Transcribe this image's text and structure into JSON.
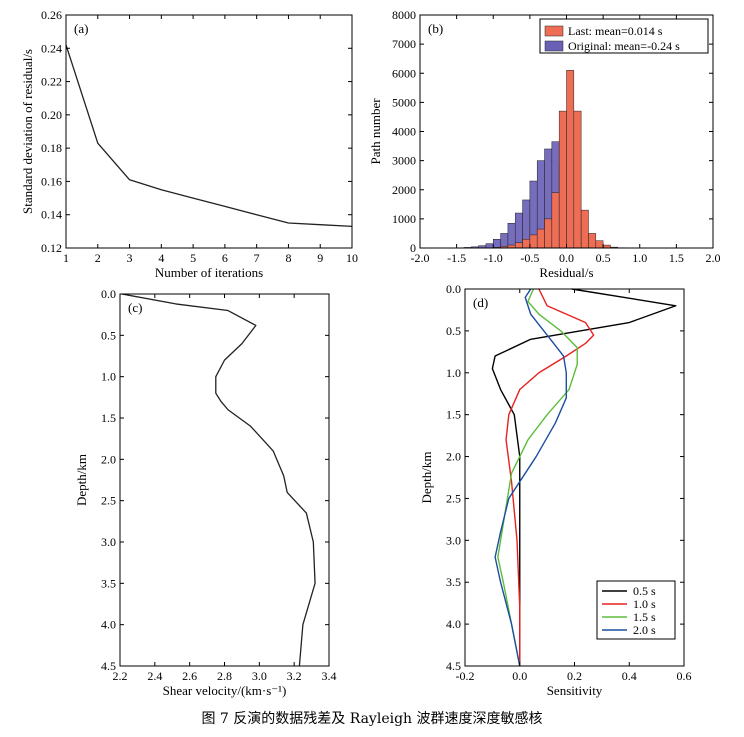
{
  "caption": "图 7   反演的数据残差及 Rayleigh 波群速度深度敏感核",
  "colors": {
    "last": "#ee6d55",
    "original": "#6a61b7",
    "curve_0_5": "#000000",
    "curve_1_0": "#e8211e",
    "curve_1_5": "#5cbd3c",
    "curve_2_0": "#1d4ea1"
  },
  "chart_data": [
    {
      "id": "a",
      "type": "line",
      "panel_label": "(a)",
      "xlabel": "Number of iterations",
      "ylabel": "Standard deviation of residual/s",
      "xlim": [
        1,
        10
      ],
      "ylim": [
        0.12,
        0.26
      ],
      "xticks": [
        1,
        2,
        3,
        4,
        5,
        6,
        7,
        8,
        9,
        10
      ],
      "yticks": [
        0.12,
        0.14,
        0.16,
        0.18,
        0.2,
        0.22,
        0.24,
        0.26
      ],
      "x": [
        1,
        2,
        3,
        4,
        5,
        6,
        7,
        8,
        9,
        10
      ],
      "y": [
        0.242,
        0.183,
        0.161,
        0.155,
        0.15,
        0.145,
        0.14,
        0.135,
        0.134,
        0.133
      ]
    },
    {
      "id": "b",
      "type": "bar",
      "panel_label": "(b)",
      "xlabel": "Residual/s",
      "ylabel": "Path number",
      "xlim": [
        -2.0,
        2.0
      ],
      "ylim": [
        0,
        8000
      ],
      "xticks": [
        -2.0,
        -1.5,
        -1.0,
        -0.5,
        0.0,
        0.5,
        1.0,
        1.5,
        2.0
      ],
      "yticks": [
        0,
        1000,
        2000,
        3000,
        4000,
        5000,
        6000,
        7000,
        8000
      ],
      "bin_edges": [
        -1.4,
        -1.3,
        -1.2,
        -1.1,
        -1.0,
        -0.9,
        -0.8,
        -0.7,
        -0.6,
        -0.5,
        -0.4,
        -0.3,
        -0.2,
        -0.1,
        0.0,
        0.1,
        0.2,
        0.3,
        0.4,
        0.5,
        0.6,
        0.7,
        0.8
      ],
      "legend_position": "top-right",
      "series": [
        {
          "name": "Original",
          "legend_label": "Original:  mean=-0.24 s",
          "values": [
            20,
            40,
            80,
            150,
            300,
            500,
            850,
            1200,
            1650,
            2300,
            3000,
            3400,
            3650,
            2900,
            1800,
            900,
            400,
            150,
            70,
            30,
            10,
            0
          ]
        },
        {
          "name": "Last",
          "legend_label": "Last:  mean=0.014 s",
          "values": [
            0,
            0,
            0,
            0,
            20,
            50,
            100,
            180,
            300,
            450,
            650,
            1000,
            1900,
            4700,
            6100,
            4700,
            1300,
            500,
            250,
            100,
            30,
            10
          ]
        }
      ]
    },
    {
      "id": "c",
      "type": "line",
      "panel_label": "(c)",
      "xlabel": "Shear velocity/(km·s⁻¹)",
      "ylabel": "Depth/km",
      "xlim": [
        2.2,
        3.4
      ],
      "ylim": [
        0.0,
        4.5
      ],
      "y_inverted": true,
      "xticks": [
        2.2,
        2.4,
        2.6,
        2.8,
        3.0,
        3.2,
        3.4
      ],
      "yticks": [
        0.0,
        0.5,
        1.0,
        1.5,
        2.0,
        2.5,
        3.0,
        3.5,
        4.0,
        4.5
      ],
      "x": [
        2.21,
        2.52,
        2.82,
        2.98,
        2.9,
        2.8,
        2.75,
        2.75,
        2.78,
        2.82,
        2.95,
        3.08,
        3.14,
        3.16,
        3.27,
        3.31,
        3.32,
        3.25,
        3.23
      ],
      "y": [
        0.0,
        0.12,
        0.2,
        0.38,
        0.6,
        0.8,
        1.0,
        1.2,
        1.3,
        1.4,
        1.6,
        1.9,
        2.2,
        2.4,
        2.65,
        3.0,
        3.5,
        4.0,
        4.5
      ]
    },
    {
      "id": "d",
      "type": "line",
      "panel_label": "(d)",
      "xlabel": "Sensitivity",
      "ylabel": "Depth/km",
      "xlim": [
        -0.2,
        0.6
      ],
      "ylim": [
        0.0,
        4.5
      ],
      "y_inverted": true,
      "xticks": [
        -0.2,
        0.0,
        0.2,
        0.4,
        0.6
      ],
      "yticks": [
        0.0,
        0.5,
        1.0,
        1.5,
        2.0,
        2.5,
        3.0,
        3.5,
        4.0,
        4.5
      ],
      "legend_position": "bottom-right",
      "series": [
        {
          "name": "0.5 s",
          "x": [
            0.19,
            0.57,
            0.4,
            0.04,
            -0.09,
            -0.1,
            -0.07,
            -0.02,
            0.0,
            0.0,
            0.0,
            0.0
          ],
          "y": [
            0.0,
            0.2,
            0.4,
            0.6,
            0.8,
            0.95,
            1.2,
            1.5,
            2.0,
            2.8,
            3.5,
            4.5
          ]
        },
        {
          "name": "1.0 s",
          "x": [
            0.07,
            0.1,
            0.24,
            0.27,
            0.24,
            0.17,
            0.07,
            0.0,
            -0.04,
            -0.05,
            -0.03,
            -0.01,
            0.0,
            0.0
          ],
          "y": [
            0.0,
            0.2,
            0.4,
            0.55,
            0.65,
            0.8,
            1.0,
            1.2,
            1.5,
            1.8,
            2.3,
            3.0,
            3.8,
            4.5
          ]
        },
        {
          "name": "1.5 s",
          "x": [
            0.05,
            0.03,
            0.07,
            0.15,
            0.21,
            0.21,
            0.18,
            0.1,
            0.03,
            -0.03,
            -0.05,
            -0.07,
            -0.08,
            -0.06,
            -0.03,
            0.0
          ],
          "y": [
            0.0,
            0.15,
            0.3,
            0.5,
            0.7,
            0.9,
            1.2,
            1.5,
            1.8,
            2.2,
            2.6,
            3.0,
            3.2,
            3.5,
            4.0,
            4.5
          ]
        },
        {
          "name": "2.0 s",
          "x": [
            0.04,
            0.02,
            0.04,
            0.1,
            0.16,
            0.17,
            0.17,
            0.13,
            0.06,
            -0.04,
            -0.07,
            -0.09,
            -0.07,
            -0.03,
            0.0
          ],
          "y": [
            0.0,
            0.1,
            0.3,
            0.55,
            0.8,
            1.0,
            1.3,
            1.6,
            2.0,
            2.5,
            2.9,
            3.2,
            3.5,
            4.0,
            4.5
          ]
        }
      ]
    }
  ]
}
